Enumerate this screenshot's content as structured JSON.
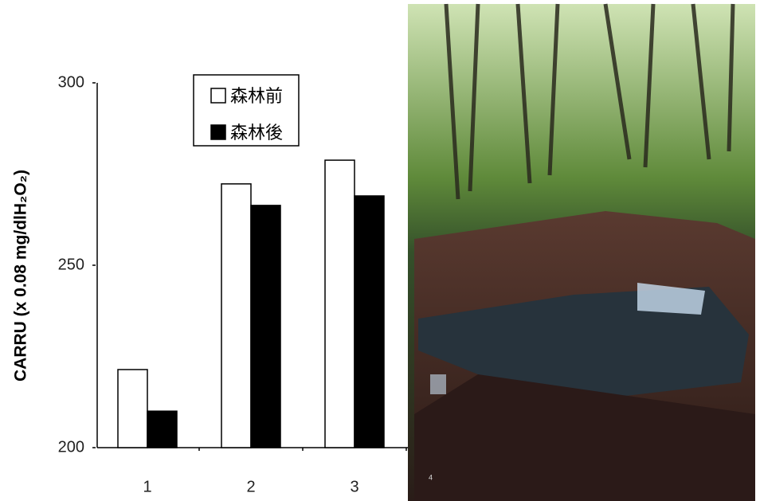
{
  "chart_data": {
    "type": "bar",
    "y_label": "CARRU (x 0.08 mg/dlH₂O₂)",
    "categories": [
      "1",
      "2",
      "3"
    ],
    "series": [
      {
        "name": "森林前",
        "color": "#ffffff",
        "values": [
          221.4,
          272.3,
          278.8
        ]
      },
      {
        "name": "森林後",
        "color": "#000000",
        "values": [
          210,
          266.4,
          269
        ]
      }
    ],
    "ylim": [
      200,
      300
    ],
    "yticks": [
      200,
      250,
      300
    ],
    "grid": false,
    "legend": "top",
    "photo_label": "4"
  }
}
